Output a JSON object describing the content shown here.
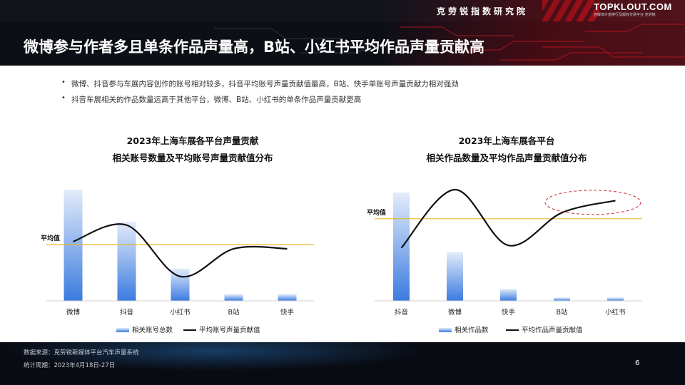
{
  "header": {
    "institute": "克劳锐指数研究院",
    "brand": "TOPKLOUT.COM",
    "brand_sub": "自媒体价值排行及版权交易平台 克劳锐",
    "title": "微博参与作者多且单条作品声量高，B站、小红书平均作品声量贡献高"
  },
  "bullets": [
    "微博、抖音参与车展内容创作的账号相对较多，抖音平均账号声量贡献值最高，B站、快手单账号声量贡献力相对强劲",
    "抖音车展相关的作品数量远高于其他平台，微博、B站、小红书的单条作品声量贡献更高"
  ],
  "chart_data": [
    {
      "type": "bar",
      "title_line1": "2023年上海车展各平台声量贡献",
      "title_line2": "相关账号数量及平均账号声量贡献值分布",
      "categories": [
        "微博",
        "抖音",
        "小红书",
        "B站",
        "快手"
      ],
      "series": [
        {
          "name": "相关账号总数",
          "type": "bar",
          "values": [
            100,
            71,
            29,
            6,
            6
          ]
        },
        {
          "name": "平均账号声量贡献值",
          "type": "line",
          "values": [
            55,
            71,
            21,
            48,
            48
          ]
        }
      ],
      "reference_line_label": "平均值",
      "reference_line_value": 52,
      "ylim": [
        0,
        100
      ],
      "colors": {
        "bar_top": "#e3ecfa",
        "bar_bottom": "#3b7be0",
        "line": "#111111",
        "reference": "#e8b821"
      }
    },
    {
      "type": "bar",
      "title_line1": "2023年上海车展各平台",
      "title_line2": "相关作品数量及平均作品声量贡献值分布",
      "categories": [
        "抖音",
        "微博",
        "快手",
        "B站",
        "小红书"
      ],
      "series": [
        {
          "name": "相关作品数",
          "type": "bar",
          "values": [
            100,
            45,
            11,
            3,
            3
          ]
        },
        {
          "name": "平均作品声量贡献值",
          "type": "line",
          "values": [
            52,
            100,
            54,
            81,
            91
          ]
        }
      ],
      "reference_line_label": "平均值",
      "reference_line_value": 76,
      "ylim": [
        0,
        100
      ],
      "colors": {
        "bar_top": "#e3ecfa",
        "bar_bottom": "#3b7be0",
        "line": "#111111",
        "reference": "#e8b821",
        "highlight": "#d0202a"
      }
    }
  ],
  "footer": {
    "source": "数据来源：克劳锐新媒体平台汽车声量系统",
    "period": "统计周期：2023年4月18日-27日",
    "page_number": "6"
  }
}
